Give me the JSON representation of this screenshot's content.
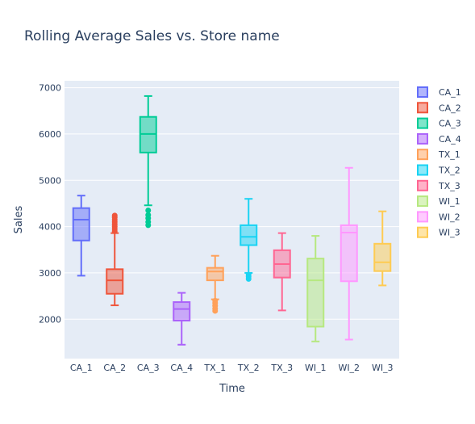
{
  "chart_data": {
    "type": "box",
    "title": "Rolling Average Sales vs. Store name",
    "xlabel": "Time",
    "ylabel": "Sales",
    "ylim": [
      1150,
      7150
    ],
    "yticks": [
      2000,
      3000,
      4000,
      5000,
      6000,
      7000
    ],
    "grid": true,
    "legend_placement": "right",
    "series": [
      {
        "name": "CA_1",
        "color": "#636efa",
        "min": 2940,
        "q1": 3700,
        "median": 4150,
        "q3": 4400,
        "max": 4670,
        "outliers": []
      },
      {
        "name": "CA_2",
        "color": "#ef553b",
        "min": 2300,
        "q1": 2550,
        "median": 2840,
        "q3": 3080,
        "max": 3860,
        "outliers": [
          3900,
          3950,
          4000,
          4050,
          4100,
          4150,
          4200,
          4240
        ]
      },
      {
        "name": "CA_3",
        "color": "#00cc96",
        "min": 4460,
        "q1": 5600,
        "median": 6000,
        "q3": 6370,
        "max": 6820,
        "outliers": [
          4030,
          4100,
          4180,
          4250,
          4350
        ]
      },
      {
        "name": "CA_4",
        "color": "#ab63fa",
        "min": 1450,
        "q1": 1970,
        "median": 2220,
        "q3": 2370,
        "max": 2570,
        "outliers": []
      },
      {
        "name": "TX_1",
        "color": "#ffa15a",
        "min": 2430,
        "q1": 2840,
        "median": 3030,
        "q3": 3110,
        "max": 3370,
        "outliers": [
          2180,
          2230,
          2290,
          2350,
          2400
        ]
      },
      {
        "name": "TX_2",
        "color": "#19d3f3",
        "min": 3000,
        "q1": 3600,
        "median": 3780,
        "q3": 4030,
        "max": 4600,
        "outliers": [
          2870,
          2920,
          2960
        ]
      },
      {
        "name": "TX_3",
        "color": "#ff6692",
        "min": 2190,
        "q1": 2900,
        "median": 3190,
        "q3": 3490,
        "max": 3860,
        "outliers": []
      },
      {
        "name": "WI_1",
        "color": "#b6e880",
        "min": 1520,
        "q1": 1840,
        "median": 2840,
        "q3": 3310,
        "max": 3800,
        "outliers": []
      },
      {
        "name": "WI_2",
        "color": "#ff97ff",
        "min": 1560,
        "q1": 2820,
        "median": 3870,
        "q3": 4030,
        "max": 5270,
        "outliers": []
      },
      {
        "name": "WI_3",
        "color": "#fecb52",
        "min": 2730,
        "q1": 3040,
        "median": 3230,
        "q3": 3630,
        "max": 4330,
        "outliers": []
      }
    ]
  }
}
